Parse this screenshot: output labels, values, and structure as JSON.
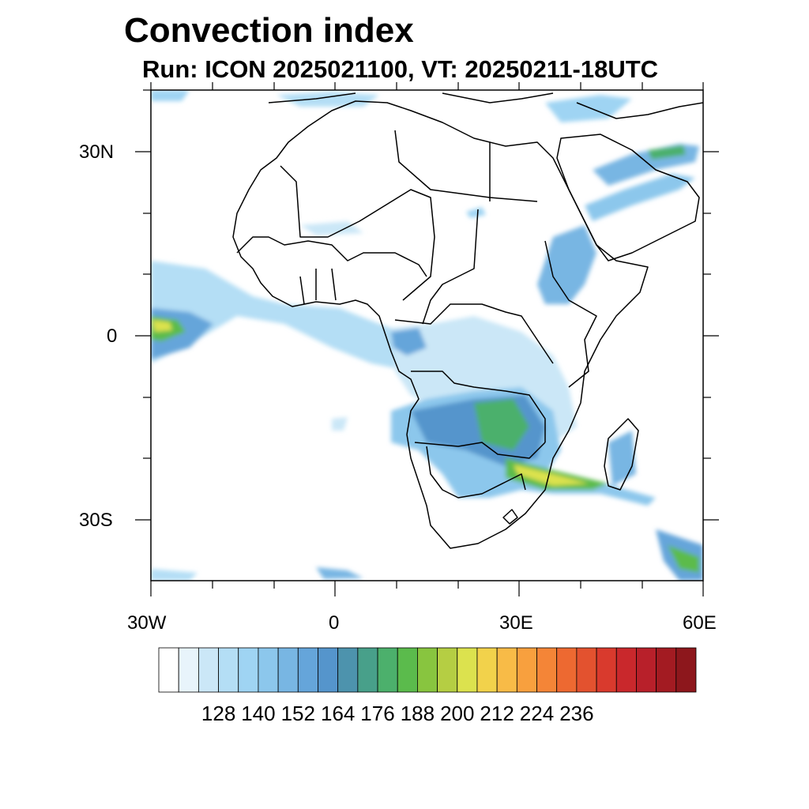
{
  "title": "Convection index",
  "subtitle": "Run: ICON 2025021100,  VT: 20250211-18UTC",
  "axes": {
    "lat_labels": [
      "30N",
      "0",
      "30S"
    ],
    "lon_labels": [
      "30W",
      "0",
      "30E",
      "60E"
    ]
  },
  "colorbar": {
    "labels": [
      "128",
      "140",
      "152",
      "164",
      "176",
      "188",
      "200",
      "212",
      "224",
      "236"
    ],
    "colors": [
      "#ffffff",
      "#e8f4fb",
      "#cbe7f7",
      "#b4def5",
      "#9fd4f3",
      "#8cc7ec",
      "#78b6e3",
      "#65a5da",
      "#5595cc",
      "#4d93ad",
      "#48a08a",
      "#4cb06c",
      "#5bbb4c",
      "#88c53f",
      "#b5ce43",
      "#dce24e",
      "#f2d24b",
      "#f8bb47",
      "#f8a03e",
      "#f48537",
      "#ed6931",
      "#e3522f",
      "#d93a2d",
      "#c9282c",
      "#b8202a",
      "#a31b22",
      "#8d171c"
    ]
  }
}
